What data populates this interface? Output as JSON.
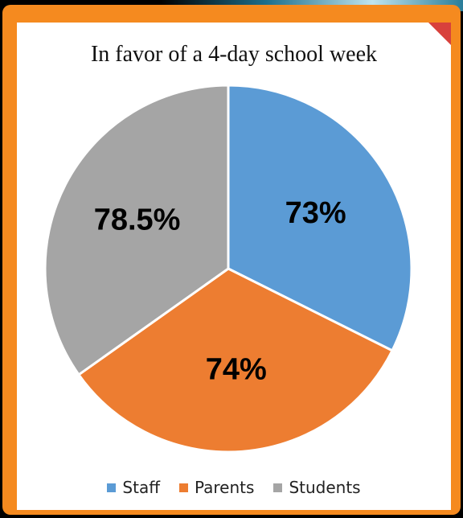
{
  "chart_data": {
    "type": "pie",
    "title": "In favor of a 4-day school week",
    "series": [
      {
        "name": "Staff",
        "value": 73,
        "label": "73%",
        "color": "#5b9bd5"
      },
      {
        "name": "Parents",
        "value": 74,
        "label": "74%",
        "color": "#ed7d31"
      },
      {
        "name": "Students",
        "value": 78.5,
        "label": "78.5%",
        "color": "#a5a5a5"
      }
    ],
    "legend_position": "bottom",
    "start_angle": "top",
    "direction": "clockwise"
  }
}
